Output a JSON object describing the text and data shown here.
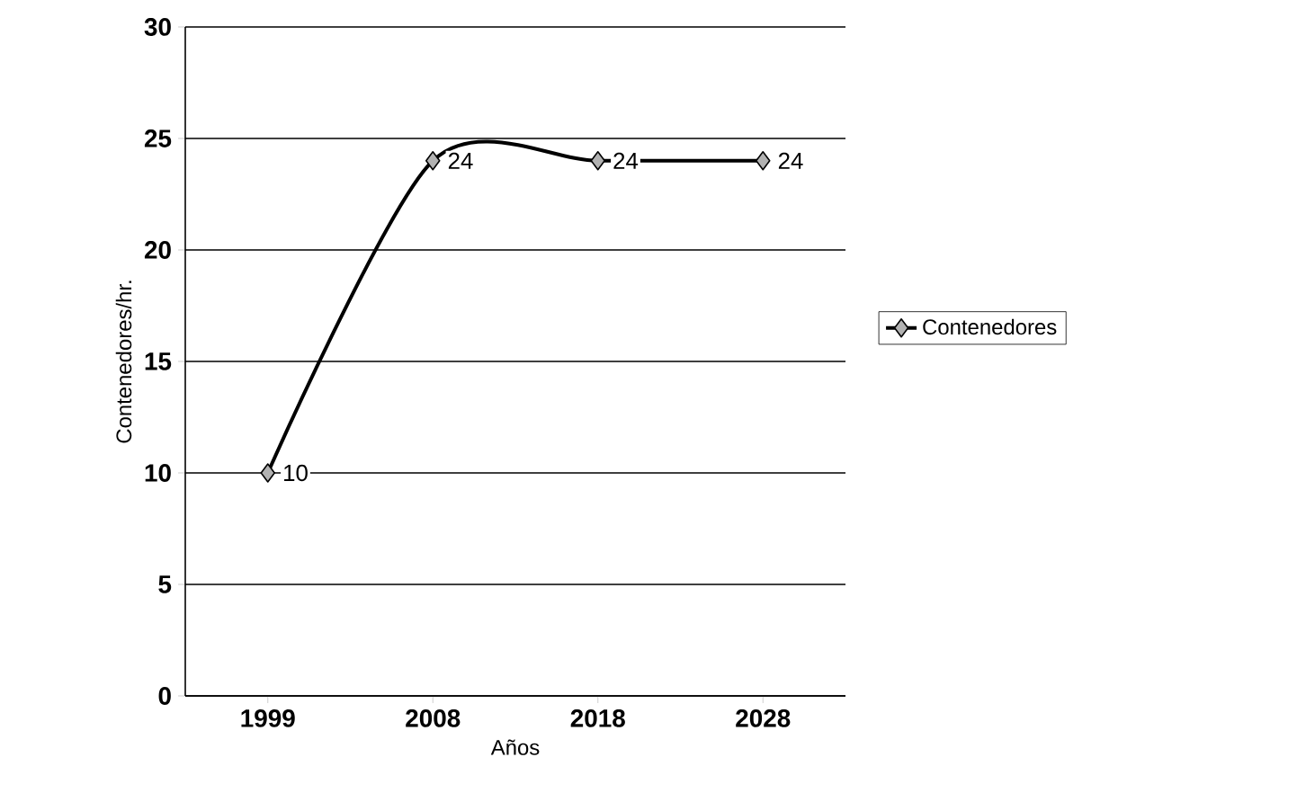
{
  "chart_data": {
    "type": "line",
    "xlabel": "Años",
    "ylabel": "Contenedores/hr.",
    "categories": [
      "1999",
      "2008",
      "2018",
      "2028"
    ],
    "series": [
      {
        "name": "Contenedores",
        "color": "#000000",
        "values": [
          10,
          24,
          24,
          24
        ]
      }
    ],
    "ylim": [
      0,
      30
    ],
    "yticks": [
      0,
      5,
      10,
      15,
      20,
      25,
      30
    ],
    "grid": "y",
    "legend": "right",
    "marker": "diamond",
    "line_style": "solid",
    "data_labels": true
  }
}
